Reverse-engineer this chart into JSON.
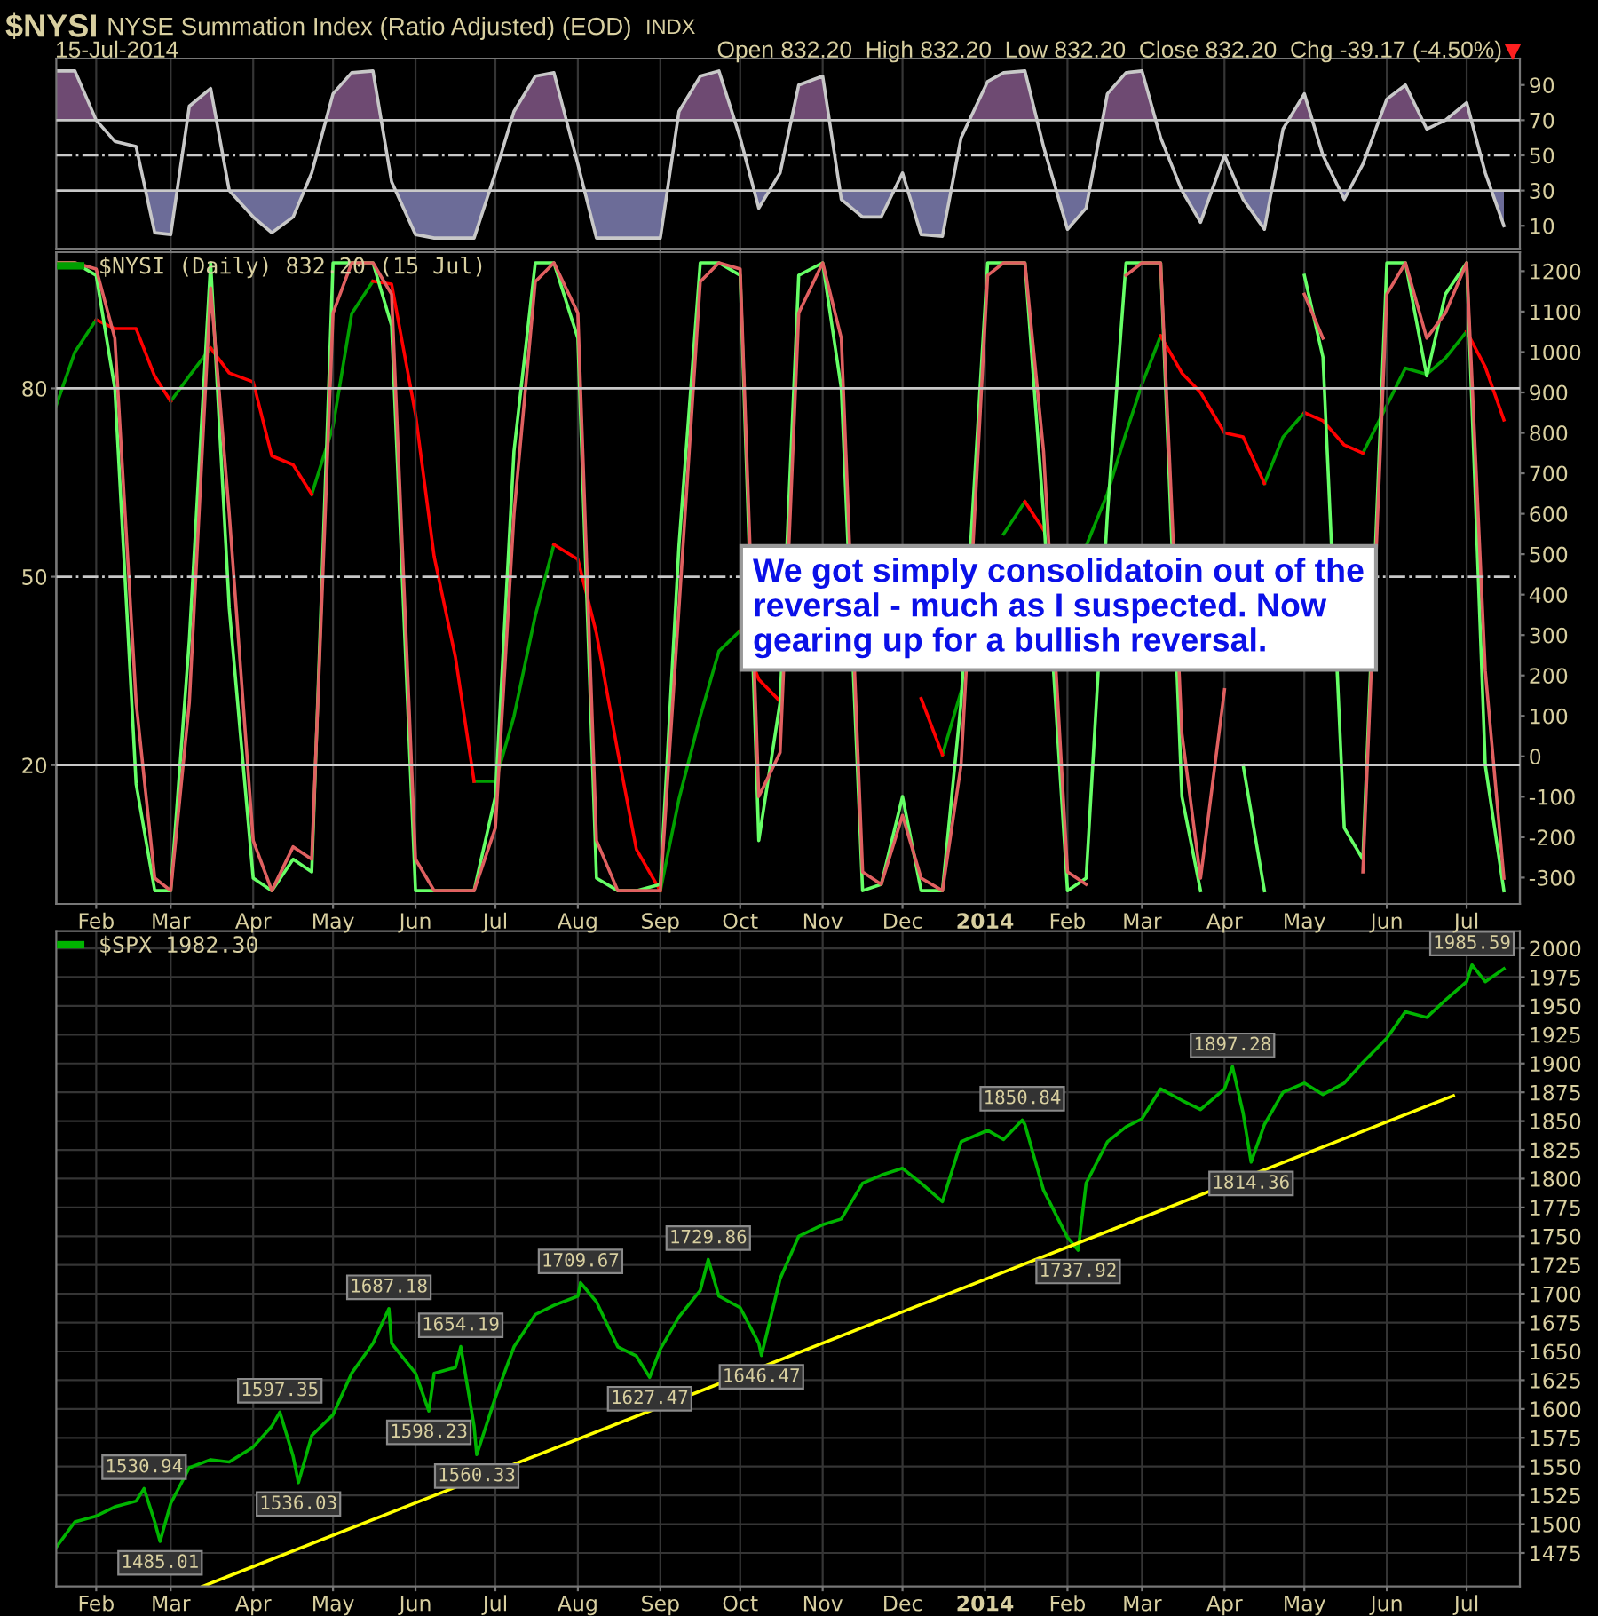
{
  "chart_data": [
    {
      "type": "line",
      "title": "$NYSI",
      "subtitle": "NYSE Summation Index (Ratio Adjusted) (EOD)",
      "annotations": [
        "INDX",
        "15-Jul-2014",
        "Open 832.20  High 832.20  Low 832.20  Close 832.20  Chg -39.17 (-4.50%)"
      ],
      "x": [
        "2013-01-17",
        "2013-01-24",
        "2013-02-01",
        "2013-02-08",
        "2013-02-16",
        "2013-02-23",
        "2013-03-01",
        "2013-03-08",
        "2013-03-16",
        "2013-03-23",
        "2013-04-01",
        "2013-04-08",
        "2013-04-16",
        "2013-04-23",
        "2013-05-01",
        "2013-05-08",
        "2013-05-16",
        "2013-05-23",
        "2013-06-01",
        "2013-06-08",
        "2013-06-16",
        "2013-06-23",
        "2013-07-01",
        "2013-07-08",
        "2013-07-16",
        "2013-07-23",
        "2013-08-01",
        "2013-08-08",
        "2013-08-16",
        "2013-08-23",
        "2013-09-01",
        "2013-09-08",
        "2013-09-16",
        "2013-09-23",
        "2013-10-01",
        "2013-10-08",
        "2013-10-16",
        "2013-10-23",
        "2013-11-01",
        "2013-11-08",
        "2013-11-16",
        "2013-11-23",
        "2013-12-01",
        "2013-12-08",
        "2013-12-16",
        "2013-12-23",
        "2014-01-02",
        "2014-01-08",
        "2014-01-16",
        "2014-01-23",
        "2014-02-01",
        "2014-02-08",
        "2014-02-16",
        "2014-02-23",
        "2014-03-01",
        "2014-03-08",
        "2014-03-16",
        "2014-03-23",
        "2014-04-01",
        "2014-04-08",
        "2014-04-16",
        "2014-04-23",
        "2014-05-01",
        "2014-05-08",
        "2014-05-16",
        "2014-05-23",
        "2014-06-01",
        "2014-06-08",
        "2014-06-16",
        "2014-06-23",
        "2014-07-01",
        "2014-07-08",
        "2014-07-15"
      ],
      "series": [
        {
          "color": "#c8c8c8",
          "values": [
            98,
            98,
            70,
            58,
            55,
            6,
            5,
            78,
            88,
            30,
            15,
            6,
            15,
            40,
            85,
            97,
            98,
            35,
            5,
            3,
            3,
            3,
            40,
            75,
            95,
            97,
            45,
            3,
            3,
            3,
            3,
            75,
            95,
            98,
            60,
            20,
            40,
            90,
            95,
            25,
            15,
            15,
            40,
            5,
            4,
            60,
            92,
            97,
            98,
            55,
            8,
            20,
            85,
            97,
            98,
            60,
            30,
            12,
            50,
            25,
            8,
            65,
            85,
            50,
            25,
            45,
            82,
            90,
            65,
            70,
            80,
            40,
            10
          ]
        }
      ],
      "xlim": [
        "2013-01-17",
        "2014-07-21"
      ],
      "xticks": [
        {
          "value": "2013-02-01",
          "label": null
        },
        {
          "value": "2013-03-01",
          "label": null
        },
        {
          "value": "2013-04-01",
          "label": null
        },
        {
          "value": "2013-05-01",
          "label": null
        },
        {
          "value": "2013-06-01",
          "label": null
        },
        {
          "value": "2013-07-01",
          "label": null
        },
        {
          "value": "2013-08-01",
          "label": null
        },
        {
          "value": "2013-09-01",
          "label": null
        },
        {
          "value": "2013-10-01",
          "label": null
        },
        {
          "value": "2013-11-01",
          "label": null
        },
        {
          "value": "2013-12-01",
          "label": null
        },
        {
          "value": "2014-01-01",
          "label": null
        },
        {
          "value": "2014-02-01",
          "label": null
        },
        {
          "value": "2014-03-01",
          "label": null
        },
        {
          "value": "2014-04-01",
          "label": null
        },
        {
          "value": "2014-05-01",
          "label": null
        },
        {
          "value": "2014-06-01",
          "label": null
        },
        {
          "value": "2014-07-01",
          "label": null
        }
      ],
      "ylim": [
        -3,
        105
      ],
      "yticks": [
        10,
        30,
        50,
        70,
        90
      ],
      "tick_labels": "y",
      "grid": "x",
      "ref_lines": [
        {
          "axis": "y",
          "value": 70,
          "color": "#c8c8c8"
        },
        {
          "axis": "y",
          "value": 50,
          "color": "#c8c8c8",
          "line_style": "dashed"
        },
        {
          "axis": "y",
          "value": 30,
          "color": "#c8c8c8"
        }
      ]
    },
    {
      "type": "line",
      "annotations": [
        "We got simply consolidatoin out of the\nreversal - much as I suspected. Now\ngearing up for a bullish reversal."
      ],
      "x": [
        "2013-01-17",
        "2013-01-24",
        "2013-02-01",
        "2013-02-08",
        "2013-02-16",
        "2013-02-23",
        "2013-03-01",
        "2013-03-08",
        "2013-03-16",
        "2013-03-23",
        "2013-04-01",
        "2013-04-08",
        "2013-04-16",
        "2013-04-23",
        "2013-05-01",
        "2013-05-08",
        "2013-05-16",
        "2013-05-23",
        "2013-06-01",
        "2013-06-08",
        "2013-06-16",
        "2013-06-23",
        "2013-07-01",
        "2013-07-08",
        "2013-07-16",
        "2013-07-23",
        "2013-08-01",
        "2013-08-08",
        "2013-08-16",
        "2013-08-23",
        "2013-09-01",
        "2013-09-08",
        "2013-09-16",
        "2013-09-23",
        "2013-10-01",
        "2013-10-08",
        "2013-10-16",
        "2013-10-23",
        "2013-11-01",
        "2013-11-08",
        "2013-11-16",
        "2013-11-23",
        "2013-12-01",
        "2013-12-08",
        "2013-12-16",
        "2013-12-23",
        "2014-01-02",
        "2014-01-08",
        "2014-01-16",
        "2014-01-23",
        "2014-02-01",
        "2014-02-08",
        "2014-02-16",
        "2014-02-23",
        "2014-03-01",
        "2014-03-08",
        "2014-03-16",
        "2014-03-23",
        "2014-04-01",
        "2014-04-08",
        "2014-04-16",
        "2014-04-23",
        "2014-05-01",
        "2014-05-08",
        "2014-05-16",
        "2014-05-23",
        "2014-06-01",
        "2014-06-08",
        "2014-06-16",
        "2014-06-23",
        "2014-07-01",
        "2014-07-08",
        "2014-07-15"
      ],
      "series": [
        {
          "name": "$NYSI (Daily) 832.20 (15 Jul)",
          "color": "#00a000",
          "axis": "y2",
          "values": [
            868,
            1000,
            1080,
            null,
            null,
            null,
            878,
            941,
            1010,
            null,
            null,
            null,
            null,
            648,
            816,
            1095,
            1175,
            null,
            null,
            null,
            null,
            -62,
            -62,
            99,
            348,
            524,
            null,
            null,
            null,
            null,
            -333,
            -106,
            99,
            260,
            311,
            null,
            null,
            null,
            null,
            null,
            null,
            null,
            null,
            null,
            4,
            160,
            null,
            550,
            630,
            null,
            null,
            520,
            650,
            800,
            920,
            1040,
            null,
            null,
            null,
            null,
            675,
            790,
            850,
            null,
            null,
            750,
            868,
            960,
            945,
            985,
            1051,
            null,
            null
          ]
        },
        {
          "color": "#ff0000",
          "axis": "y2",
          "values": [
            null,
            null,
            1080,
            1058,
            1058,
            940,
            878,
            null,
            1010,
            948,
            926,
            743,
            721,
            648,
            null,
            null,
            1175,
            1168,
            846,
            494,
            245,
            -62,
            null,
            null,
            null,
            524,
            487,
            304,
            11,
            -230,
            -333,
            null,
            null,
            null,
            311,
            190,
            136,
            null,
            null,
            null,
            null,
            null,
            null,
            143,
            4,
            null,
            null,
            null,
            630,
            560,
            null,
            null,
            null,
            null,
            null,
            1040,
            948,
            900,
            800,
            790,
            675,
            null,
            850,
            830,
            770,
            750,
            null,
            null,
            null,
            null,
            1051,
            963,
            832.2
          ]
        },
        {
          "color": "#66ff66",
          "values": [
            100,
            100,
            98,
            80,
            17,
            0,
            0,
            40,
            100,
            45,
            2,
            0,
            5,
            3,
            100,
            100,
            100,
            90,
            0,
            0,
            0,
            0,
            15,
            70,
            100,
            100,
            88,
            2,
            0,
            0,
            1,
            55,
            100,
            100,
            98,
            8,
            30,
            98,
            100,
            80,
            0,
            1,
            15,
            0,
            0,
            30,
            100,
            100,
            100,
            60,
            0,
            2,
            60,
            100,
            100,
            100,
            15,
            0,
            null,
            20,
            0,
            null,
            98,
            85,
            10,
            5,
            100,
            100,
            82,
            95,
            100,
            20,
            0
          ]
        },
        {
          "color": "#e06060",
          "values": [
            100,
            100,
            99,
            88,
            30,
            2,
            0,
            30,
            96,
            60,
            8,
            0,
            7,
            5,
            92,
            100,
            100,
            95,
            5,
            0,
            0,
            0,
            10,
            60,
            97,
            100,
            92,
            8,
            0,
            0,
            0,
            45,
            97,
            100,
            99,
            15,
            22,
            92,
            100,
            88,
            3,
            1,
            12,
            2,
            0,
            20,
            98,
            100,
            100,
            70,
            3,
            1,
            null,
            98,
            100,
            100,
            25,
            2,
            32,
            null,
            null,
            null,
            95,
            88,
            null,
            3,
            95,
            100,
            88,
            92,
            100,
            35,
            2
          ]
        }
      ],
      "xlim": [
        "2013-01-17",
        "2014-07-21"
      ],
      "xticks": [
        {
          "value": "2013-02-01",
          "label": "Feb"
        },
        {
          "value": "2013-03-01",
          "label": "Mar"
        },
        {
          "value": "2013-04-01",
          "label": "Apr"
        },
        {
          "value": "2013-05-01",
          "label": "May"
        },
        {
          "value": "2013-06-01",
          "label": "Jun"
        },
        {
          "value": "2013-07-01",
          "label": "Jul"
        },
        {
          "value": "2013-08-01",
          "label": "Aug"
        },
        {
          "value": "2013-09-01",
          "label": "Sep"
        },
        {
          "value": "2013-10-01",
          "label": "Oct"
        },
        {
          "value": "2013-11-01",
          "label": "Nov"
        },
        {
          "value": "2013-12-01",
          "label": "Dec"
        },
        {
          "value": "2014-01-01",
          "label": "2014"
        },
        {
          "value": "2014-02-01",
          "label": "Feb"
        },
        {
          "value": "2014-03-01",
          "label": "Mar"
        },
        {
          "value": "2014-04-01",
          "label": "Apr"
        },
        {
          "value": "2014-05-01",
          "label": "May"
        },
        {
          "value": "2014-06-01",
          "label": "Jun"
        },
        {
          "value": "2014-07-01",
          "label": "Jul"
        }
      ],
      "ylim": [
        -2.1,
        101.7
      ],
      "yticks": [
        20,
        50,
        80
      ],
      "y2lim": [
        -365,
        1247
      ],
      "y2ticks": [
        -300,
        -200,
        -100,
        0,
        100,
        200,
        300,
        400,
        500,
        600,
        700,
        800,
        900,
        1000,
        1100,
        1200
      ],
      "grid": "x",
      "legend": "top left",
      "ref_lines": [
        {
          "axis": "y",
          "value": 80,
          "color": "#c8c8c8"
        },
        {
          "axis": "y",
          "value": 50,
          "color": "#c8c8c8",
          "line_style": "dashed"
        },
        {
          "axis": "y",
          "value": 20,
          "color": "#c8c8c8"
        }
      ]
    },
    {
      "type": "line",
      "series": [
        {
          "name": "$SPX 1982.30",
          "color": "#00b400",
          "x": [
            "2013-01-17",
            "2013-01-24",
            "2013-02-01",
            "2013-02-08",
            "2013-02-16",
            "2013-02-19",
            "2013-02-23",
            "2013-02-25",
            "2013-03-01",
            "2013-03-08",
            "2013-03-16",
            "2013-03-23",
            "2013-04-01",
            "2013-04-08",
            "2013-04-11",
            "2013-04-16",
            "2013-04-18",
            "2013-04-23",
            "2013-05-01",
            "2013-05-08",
            "2013-05-16",
            "2013-05-22",
            "2013-05-23",
            "2013-06-01",
            "2013-06-06",
            "2013-06-08",
            "2013-06-16",
            "2013-06-18",
            "2013-06-23",
            "2013-06-24",
            "2013-07-01",
            "2013-07-08",
            "2013-07-16",
            "2013-07-23",
            "2013-08-01",
            "2013-08-02",
            "2013-08-08",
            "2013-08-16",
            "2013-08-23",
            "2013-08-28",
            "2013-09-01",
            "2013-09-08",
            "2013-09-16",
            "2013-09-19",
            "2013-09-23",
            "2013-10-01",
            "2013-10-08",
            "2013-10-09",
            "2013-10-16",
            "2013-10-23",
            "2013-11-01",
            "2013-11-08",
            "2013-11-16",
            "2013-11-23",
            "2013-12-01",
            "2013-12-08",
            "2013-12-16",
            "2013-12-23",
            "2014-01-02",
            "2014-01-08",
            "2014-01-15",
            "2014-01-16",
            "2014-01-23",
            "2014-02-01",
            "2014-02-05",
            "2014-02-08",
            "2014-02-16",
            "2014-02-23",
            "2014-03-01",
            "2014-03-08",
            "2014-03-16",
            "2014-03-23",
            "2014-04-01",
            "2014-04-04",
            "2014-04-08",
            "2014-04-11",
            "2014-04-16",
            "2014-04-23",
            "2014-05-01",
            "2014-05-08",
            "2014-05-16",
            "2014-05-23",
            "2014-06-01",
            "2014-06-08",
            "2014-06-16",
            "2014-06-23",
            "2014-07-01",
            "2014-07-03",
            "2014-07-08",
            "2014-07-15"
          ],
          "values": [
            1480,
            1502,
            1507,
            1515,
            1520,
            1530.94,
            1502,
            1485.01,
            1518,
            1549,
            1556,
            1554,
            1567,
            1585,
            1597.35,
            1559,
            1536.03,
            1577,
            1595,
            1631,
            1657,
            1687.18,
            1657,
            1631,
            1598.23,
            1631,
            1636,
            1654.19,
            1585,
            1560.33,
            1610,
            1654,
            1682,
            1690,
            1698,
            1709.67,
            1693,
            1654,
            1646,
            1627.47,
            1652,
            1680,
            1703,
            1729.86,
            1698,
            1688,
            1657,
            1646.47,
            1713,
            1750,
            1760,
            1765,
            1796,
            1803,
            1809,
            1796,
            1780,
            1832,
            1842,
            1834,
            1850.84,
            1847,
            1790,
            1749,
            1737.92,
            1796,
            1832,
            1845,
            1852,
            1878,
            1868,
            1860,
            1878,
            1897.28,
            1857,
            1814.36,
            1847,
            1875,
            1883,
            1873,
            1883,
            1901,
            1922,
            1945,
            1940,
            1955,
            1971,
            1985.59,
            1971,
            1982.3
          ]
        },
        {
          "color": "#ffff00",
          "x": [
            "2013-03-13",
            "2014-06-26"
          ],
          "values": [
            1446,
            1872
          ]
        }
      ],
      "annotations": [
        {
          "text": "1530.94",
          "x": "2013-02-19",
          "y": 1530.94
        },
        {
          "text": "1485.01",
          "x": "2013-02-25",
          "y": 1485.01
        },
        {
          "text": "1597.35",
          "x": "2013-04-11",
          "y": 1597.35
        },
        {
          "text": "1536.03",
          "x": "2013-04-18",
          "y": 1536.03
        },
        {
          "text": "1687.18",
          "x": "2013-05-22",
          "y": 1687.18
        },
        {
          "text": "1598.23",
          "x": "2013-06-06",
          "y": 1598.23
        },
        {
          "text": "1654.19",
          "x": "2013-06-18",
          "y": 1654.19
        },
        {
          "text": "1560.33",
          "x": "2013-06-24",
          "y": 1560.33
        },
        {
          "text": "1709.67",
          "x": "2013-08-02",
          "y": 1709.67
        },
        {
          "text": "1627.47",
          "x": "2013-08-28",
          "y": 1627.47
        },
        {
          "text": "1729.86",
          "x": "2013-09-19",
          "y": 1729.86
        },
        {
          "text": "1646.47",
          "x": "2013-10-09",
          "y": 1646.47
        },
        {
          "text": "1850.84",
          "x": "2014-01-15",
          "y": 1850.84
        },
        {
          "text": "1737.92",
          "x": "2014-02-05",
          "y": 1737.92
        },
        {
          "text": "1897.28",
          "x": "2014-04-04",
          "y": 1897.28
        },
        {
          "text": "1814.36",
          "x": "2014-04-11",
          "y": 1814.36
        },
        {
          "text": "1985.59",
          "x": "2014-07-03",
          "y": 1985.59
        }
      ],
      "xlim": [
        "2013-01-17",
        "2014-07-21"
      ],
      "xticks": [
        {
          "value": "2013-02-01",
          "label": "Feb"
        },
        {
          "value": "2013-03-01",
          "label": "Mar"
        },
        {
          "value": "2013-04-01",
          "label": "Apr"
        },
        {
          "value": "2013-05-01",
          "label": "May"
        },
        {
          "value": "2013-06-01",
          "label": "Jun"
        },
        {
          "value": "2013-07-01",
          "label": "Jul"
        },
        {
          "value": "2013-08-01",
          "label": "Aug"
        },
        {
          "value": "2013-09-01",
          "label": "Sep"
        },
        {
          "value": "2013-10-01",
          "label": "Oct"
        },
        {
          "value": "2013-11-01",
          "label": "Nov"
        },
        {
          "value": "2013-12-01",
          "label": "Dec"
        },
        {
          "value": "2014-01-01",
          "label": "2014"
        },
        {
          "value": "2014-02-01",
          "label": "Feb"
        },
        {
          "value": "2014-03-01",
          "label": "Mar"
        },
        {
          "value": "2014-04-01",
          "label": "Apr"
        },
        {
          "value": "2014-05-01",
          "label": "May"
        },
        {
          "value": "2014-06-01",
          "label": "Jun"
        },
        {
          "value": "2014-07-01",
          "label": "Jul"
        }
      ],
      "ylim": [
        1446,
        2015
      ],
      "yticks": [
        1475,
        1500,
        1525,
        1550,
        1575,
        1600,
        1625,
        1650,
        1675,
        1700,
        1725,
        1750,
        1775,
        1800,
        1825,
        1850,
        1875,
        1900,
        1925,
        1950,
        1975,
        2000
      ],
      "grid": true,
      "legend": "top left"
    }
  ]
}
